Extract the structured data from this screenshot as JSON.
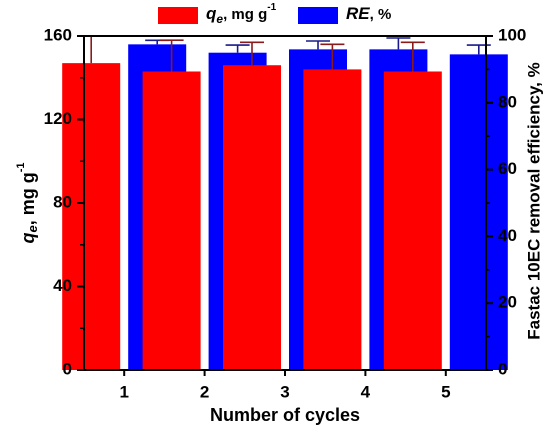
{
  "chart_data": {
    "type": "bar",
    "categories": [
      "1",
      "2",
      "3",
      "4",
      "5"
    ],
    "xlabel": "Number of cycles",
    "ylabel_left": {
      "symbol": "q",
      "subscript": "e",
      "unit_prefix": ", mg g",
      "unit_superscript": "-1"
    },
    "ylabel_right": "Fastac 10EC removal efficiency, %",
    "ylim_left": [
      0,
      160
    ],
    "yticks_left": [
      0,
      40,
      80,
      120,
      160
    ],
    "ylim_right": [
      0,
      100
    ],
    "yticks_right": [
      0,
      20,
      40,
      60,
      80,
      100
    ],
    "series": [
      {
        "name": "qe, mg g-1",
        "legend_symbol": "q",
        "legend_subscript": "e",
        "legend_unit_prefix": ", mg g",
        "legend_unit_superscript": "-1",
        "axis": "left",
        "color": "#ff0000",
        "errorbar_color": "#8b1a1a",
        "values": [
          147,
          143,
          146,
          144,
          143
        ],
        "errors": [
          13,
          15,
          11,
          12,
          14
        ]
      },
      {
        "name": "RE, %",
        "legend_symbol": "RE",
        "legend_unit_prefix": ", %",
        "axis": "right",
        "color": "#0000ff",
        "errorbar_color": "#1a1a8b",
        "values": [
          97.5,
          95,
          96,
          96,
          94.5
        ],
        "errors": [
          1.2,
          2.3,
          2.5,
          3.4,
          2.8
        ]
      }
    ],
    "legend_position": "top",
    "grid": false
  }
}
